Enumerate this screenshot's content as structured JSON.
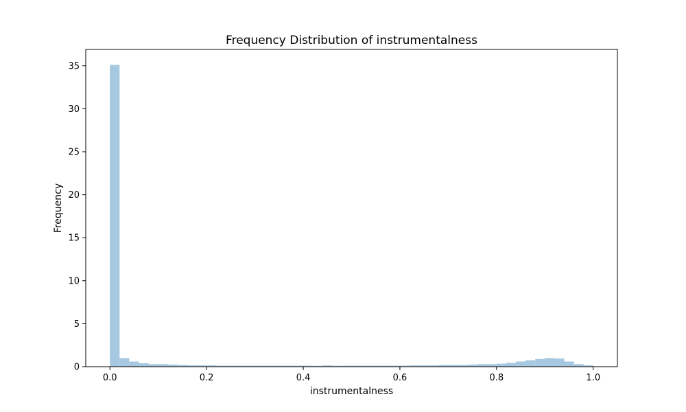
{
  "chart_data": {
    "type": "bar",
    "subtype": "histogram",
    "title": "Frequency Distribution of instrumentalness",
    "xlabel": "instrumentalness",
    "ylabel": "Frequency",
    "xlim": [
      -0.05,
      1.05
    ],
    "ylim": [
      0,
      36.9
    ],
    "xticks": [
      0.0,
      0.2,
      0.4,
      0.6,
      0.8,
      1.0
    ],
    "xtick_labels": [
      "0.0",
      "0.2",
      "0.4",
      "0.6",
      "0.8",
      "1.0"
    ],
    "yticks": [
      0,
      5,
      10,
      15,
      20,
      25,
      30,
      35
    ],
    "ytick_labels": [
      "0",
      "5",
      "10",
      "15",
      "20",
      "25",
      "30",
      "35"
    ],
    "bin_start": 0.0,
    "bin_width": 0.02,
    "values": [
      35.1,
      1.0,
      0.6,
      0.4,
      0.3,
      0.3,
      0.25,
      0.2,
      0.15,
      0.15,
      0.15,
      0.12,
      0.12,
      0.12,
      0.12,
      0.12,
      0.12,
      0.12,
      0.12,
      0.12,
      0.12,
      0.1,
      0.15,
      0.1,
      0.12,
      0.12,
      0.12,
      0.12,
      0.12,
      0.12,
      0.12,
      0.15,
      0.15,
      0.15,
      0.2,
      0.2,
      0.2,
      0.25,
      0.3,
      0.3,
      0.35,
      0.45,
      0.6,
      0.75,
      0.9,
      1.0,
      0.95,
      0.6,
      0.3,
      0.15
    ],
    "bar_color": "#a6c8e0",
    "axis_color": "#000000",
    "grid": false,
    "legend": false
  }
}
